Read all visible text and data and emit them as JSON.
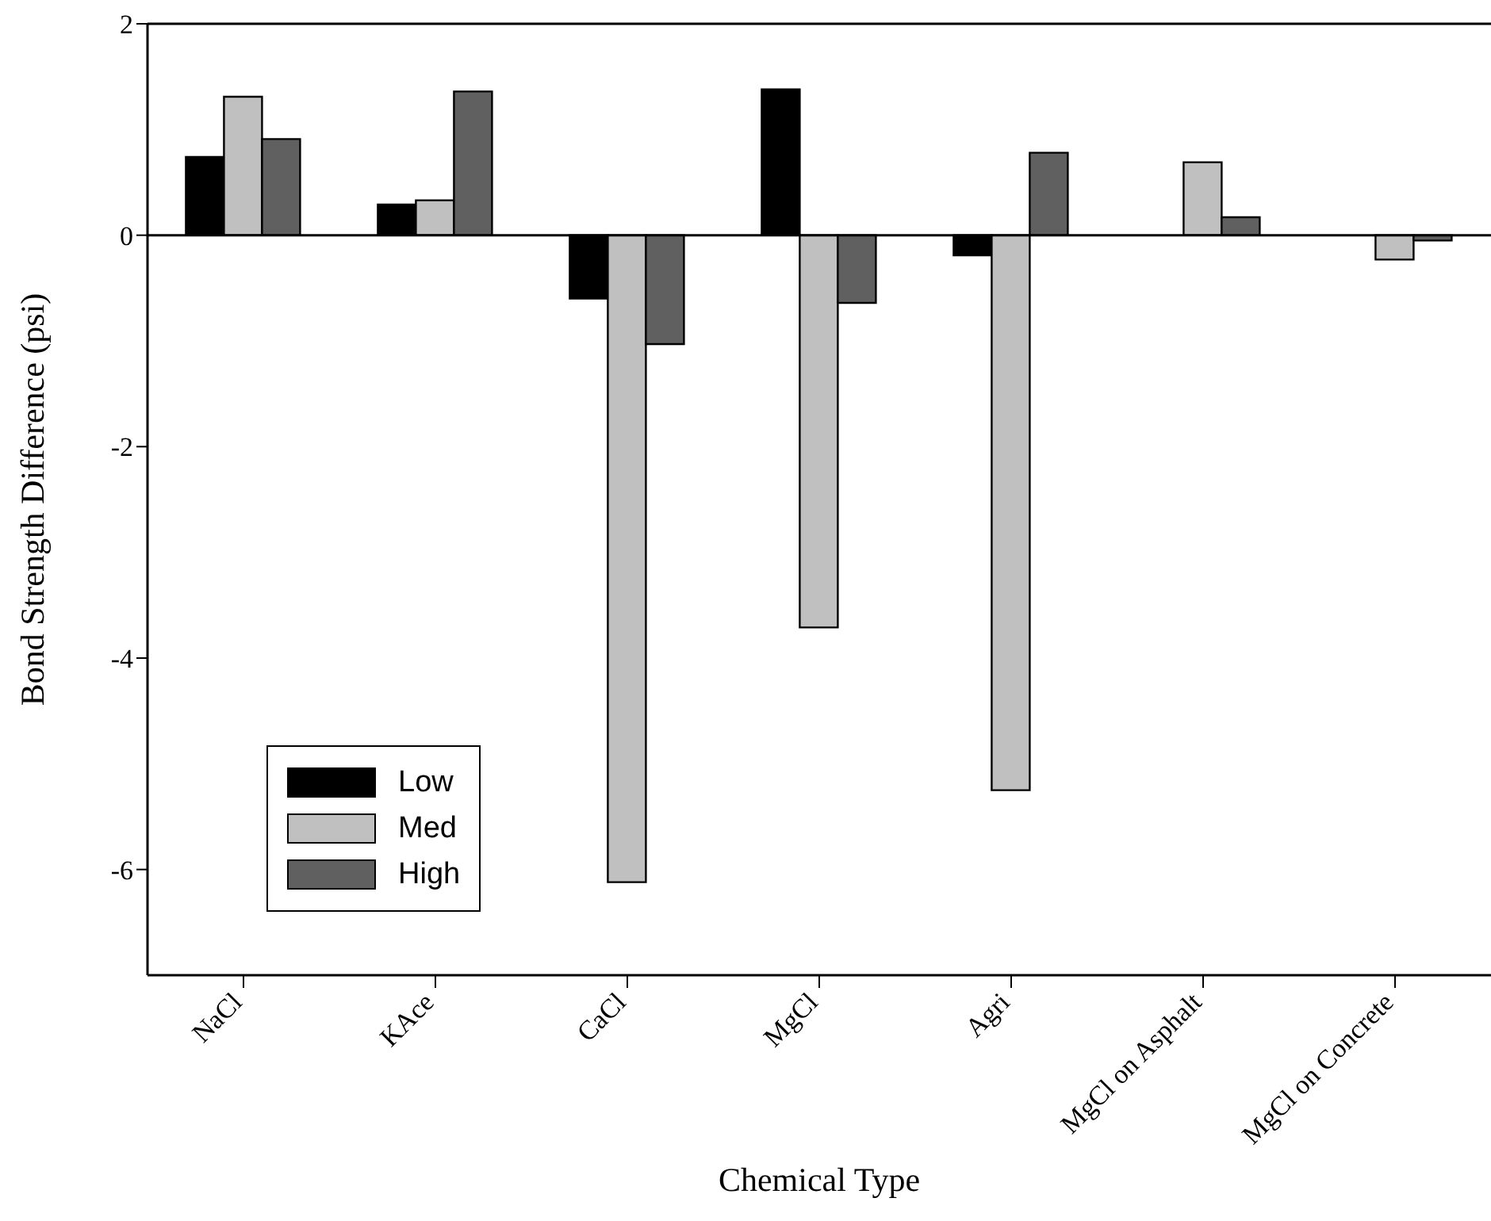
{
  "chart_data": {
    "type": "bar",
    "xlabel": "Chemical Type",
    "ylabel": "Bond Strength Difference (psi)",
    "categories": [
      "NaCl",
      "KAce",
      "CaCl",
      "MgCl",
      "Agri",
      "MgCl on Asphalt",
      "MgCl on Concrete"
    ],
    "series": [
      {
        "name": "Low",
        "color": "#000000",
        "values": [
          0.74,
          0.29,
          -0.6,
          1.38,
          -0.19,
          null,
          null
        ]
      },
      {
        "name": "Med",
        "color": "#c0c0c0",
        "values": [
          1.31,
          0.33,
          -6.12,
          -3.71,
          -5.25,
          0.69,
          -0.23
        ]
      },
      {
        "name": "High",
        "color": "#606060",
        "values": [
          0.91,
          1.36,
          -1.03,
          -0.64,
          0.78,
          0.17,
          -0.05
        ]
      }
    ],
    "ylim": [
      -7,
      2
    ],
    "yticks": [
      -6,
      -4,
      -2,
      0,
      2
    ],
    "ref_lines": [
      {
        "axis": "y",
        "value": 0
      }
    ],
    "legend": "bottom left",
    "grid": false
  }
}
